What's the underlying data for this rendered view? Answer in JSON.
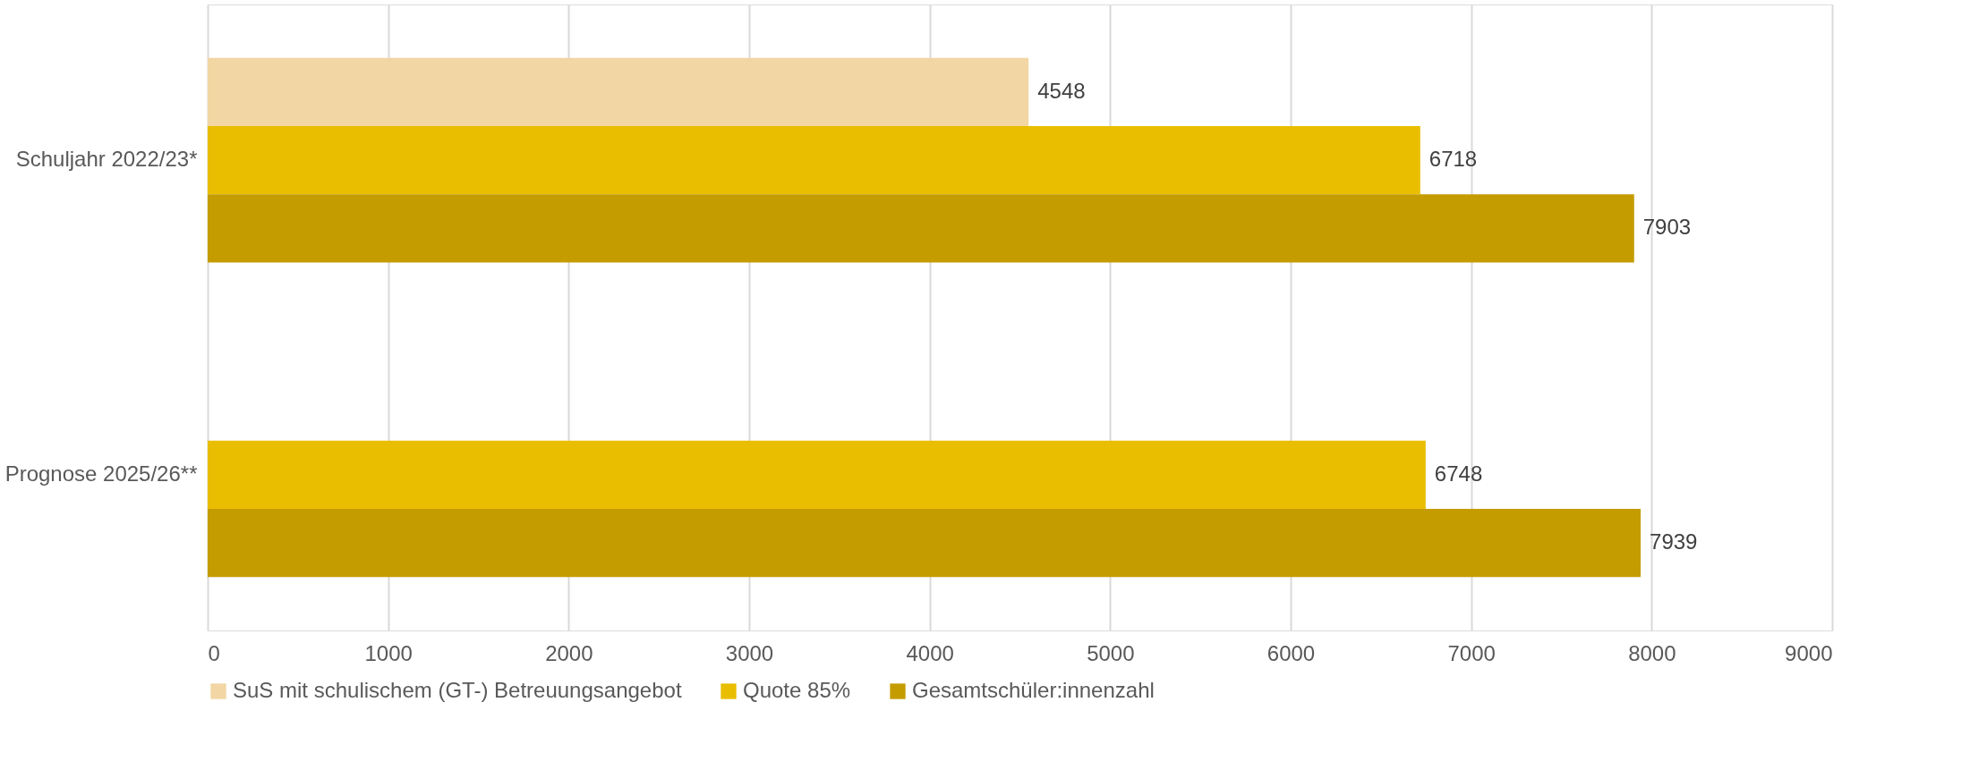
{
  "chart_data": {
    "type": "bar",
    "orientation": "horizontal",
    "categories": [
      "Schuljahr 2022/23*",
      "Prognose 2025/26**"
    ],
    "series": [
      {
        "name": "SuS mit schulischem (GT-) Betreuungsangebot",
        "color": "#f2d6a3",
        "values": [
          4548,
          null
        ]
      },
      {
        "name": "Quote 85%",
        "color": "#e9be00",
        "values": [
          6718,
          6748
        ]
      },
      {
        "name": "Gesamtschüler:innenzahl",
        "color": "#c49c00",
        "values": [
          7903,
          7939
        ]
      }
    ],
    "xlim": [
      0,
      9000
    ],
    "xticks": [
      0,
      1000,
      2000,
      3000,
      4000,
      5000,
      6000,
      7000,
      8000,
      9000
    ],
    "grid": "x",
    "legend": "bottom",
    "data_labels": true
  }
}
